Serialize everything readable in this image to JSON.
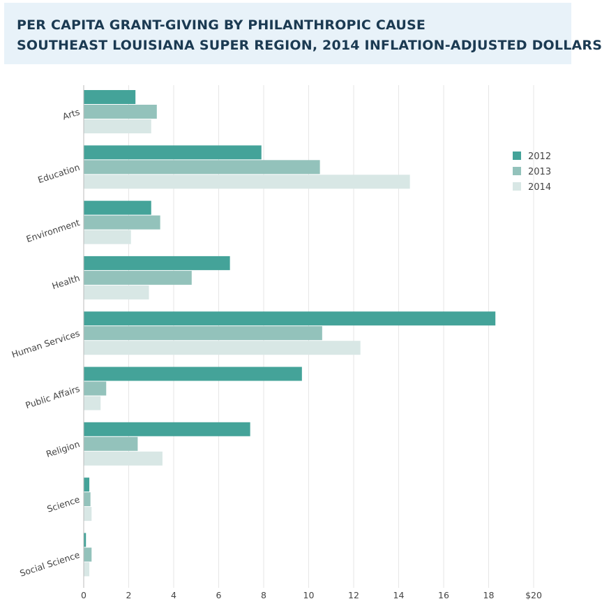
{
  "header": {
    "title_line1": "PER CAPITA GRANT-GIVING BY PHILANTHROPIC CAUSE",
    "title_line2": "SOUTHEAST LOUISIANA SUPER REGION, 2014 INFLATION-ADJUSTED DOLLARS"
  },
  "colors": {
    "header_bg": "#e8f2f9",
    "title_text": "#1b3a52",
    "grid": "#e6e6e6",
    "axis": "#bbbbbb"
  },
  "chart_data": {
    "type": "bar",
    "orientation": "horizontal",
    "title": "PER CAPITA GRANT-GIVING BY PHILANTHROPIC CAUSE",
    "subtitle": "SOUTHEAST LOUISIANA SUPER REGION, 2014 INFLATION-ADJUSTED DOLLARS",
    "categories": [
      "Arts",
      "Education",
      "Environment",
      "Health",
      "Human Services",
      "Public Affairs",
      "Religion",
      "Science",
      "Social Science"
    ],
    "series": [
      {
        "name": "2012",
        "color": "#44a399",
        "values": [
          2.3,
          7.9,
          3.0,
          6.5,
          18.3,
          9.7,
          7.4,
          0.25,
          0.1
        ]
      },
      {
        "name": "2013",
        "color": "#93c2bb",
        "values": [
          3.25,
          10.5,
          3.4,
          4.8,
          10.6,
          1.0,
          2.4,
          0.3,
          0.35
        ]
      },
      {
        "name": "2014",
        "color": "#d8e7e5",
        "values": [
          3.0,
          14.5,
          2.1,
          2.9,
          12.3,
          0.75,
          3.5,
          0.35,
          0.25
        ]
      }
    ],
    "xlim": [
      0,
      20
    ],
    "xticks": [
      0,
      2,
      4,
      6,
      8,
      10,
      12,
      14,
      16,
      18,
      20
    ],
    "xtick_labels": [
      "0",
      "2",
      "4",
      "6",
      "8",
      "10",
      "12",
      "14",
      "16",
      "18",
      "$20"
    ],
    "xlabel": "",
    "ylabel": "",
    "grid": true,
    "legend_position": "top-right"
  }
}
